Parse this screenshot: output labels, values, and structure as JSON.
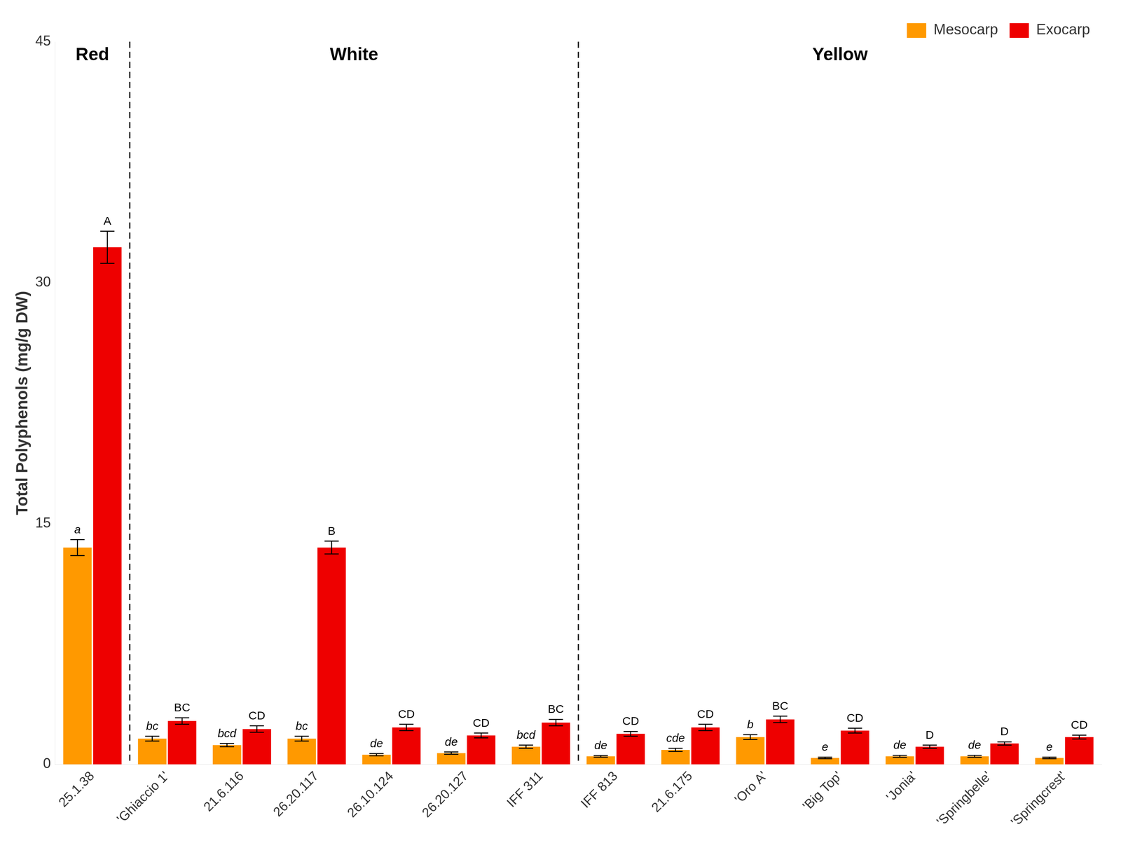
{
  "chart_data": {
    "type": "bar",
    "categories": [
      "25.1.38",
      "'Ghiaccio 1'",
      "21.6.116",
      "26.20.117",
      "26.10.124",
      "26.20.127",
      "IFF 311",
      "IFF 813",
      "21.6.175",
      "'Oro A'",
      "'Big Top'",
      "'Jonia'",
      "'Springbelle'",
      "'Springcrest'"
    ],
    "series": [
      {
        "name": "Mesocarp",
        "color": "#FF9900",
        "values": [
          13.5,
          1.6,
          1.2,
          1.6,
          0.6,
          0.7,
          1.1,
          0.5,
          0.9,
          1.7,
          0.4,
          0.5,
          0.5,
          0.4
        ],
        "errors": [
          0.5,
          0.15,
          0.1,
          0.15,
          0.07,
          0.07,
          0.1,
          0.05,
          0.1,
          0.15,
          0.05,
          0.06,
          0.06,
          0.05
        ],
        "letters": [
          "a",
          "bc",
          "bcd",
          "bc",
          "de",
          "de",
          "bcd",
          "de",
          "cde",
          "b",
          "e",
          "de",
          "de",
          "e"
        ]
      },
      {
        "name": "Exocarp",
        "color": "#EE0000",
        "values": [
          32.2,
          2.7,
          2.2,
          13.5,
          2.3,
          1.8,
          2.6,
          1.9,
          2.3,
          2.8,
          2.1,
          1.1,
          1.3,
          1.7
        ],
        "errors": [
          1.0,
          0.2,
          0.2,
          0.4,
          0.2,
          0.15,
          0.2,
          0.15,
          0.2,
          0.2,
          0.15,
          0.1,
          0.1,
          0.12
        ],
        "letters": [
          "A",
          "BC",
          "CD",
          "B",
          "CD",
          "CD",
          "BC",
          "CD",
          "CD",
          "BC",
          "CD",
          "D",
          "D",
          "CD"
        ]
      }
    ],
    "groups": [
      {
        "label": "Red",
        "categories": [
          "25.1.38"
        ]
      },
      {
        "label": "White",
        "categories": [
          "'Ghiaccio 1'",
          "21.6.116",
          "26.20.117",
          "26.10.124",
          "26.20.127",
          "IFF 311"
        ]
      },
      {
        "label": "Yellow",
        "categories": [
          "IFF 813",
          "21.6.175",
          "'Oro A'",
          "'Big Top'",
          "'Jonia'",
          "'Springbelle'",
          "'Springcrest'"
        ]
      }
    ],
    "ylabel": "Total Polyphenols (mg/g DW)",
    "ylim": [
      0,
      45
    ],
    "yticks": [
      0,
      15,
      30,
      45
    ],
    "grid": false,
    "legend": "upper right"
  }
}
